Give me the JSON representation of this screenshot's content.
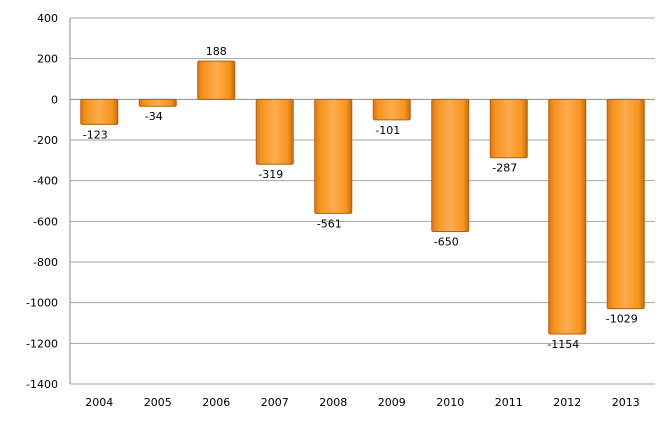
{
  "chart_data": {
    "type": "bar",
    "title": "",
    "xlabel": "",
    "ylabel": "",
    "categories": [
      "2004",
      "2005",
      "2006",
      "2007",
      "2008",
      "2009",
      "2010",
      "2011",
      "2012",
      "2013"
    ],
    "values": [
      -123,
      -34,
      188,
      -319,
      -561,
      -101,
      -650,
      -287,
      -1154,
      -1029
    ],
    "data_labels": [
      "-123",
      "-34",
      "188",
      "-319",
      "-561",
      "-101",
      "-650",
      "-287",
      "-1154",
      "-1029"
    ],
    "ylim": [
      -1400,
      400
    ],
    "yticks": [
      400,
      200,
      0,
      -200,
      -400,
      -600,
      -800,
      -1000,
      -1200,
      -1400
    ],
    "ytick_labels": [
      "400",
      "200",
      "0",
      "-200",
      "-400",
      "-600",
      "-800",
      "-1000",
      "-1200",
      "-1400"
    ],
    "grid": true,
    "legend": "none",
    "colors": {
      "bar": "#f7941d",
      "bar_light": "#fbb25e",
      "bar_dark": "#c86b0c",
      "grid": "#a6a6a6"
    }
  }
}
